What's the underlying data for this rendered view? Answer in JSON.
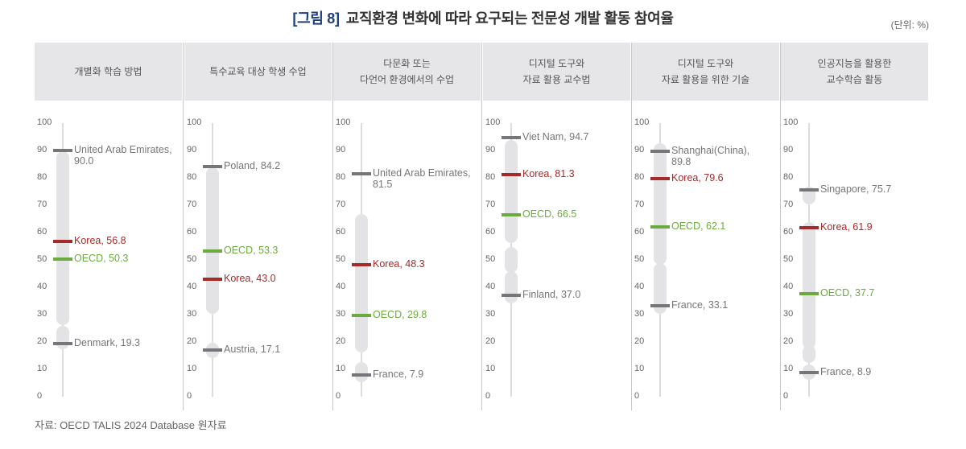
{
  "title": {
    "figure": "[그림 8]",
    "text": "교직환경 변화에 따라 요구되는 전문성 개발 활동 참여율"
  },
  "unit": "(단위: %)",
  "source": "자료: OECD TALIS 2024 Database 원자료",
  "colors": {
    "max_min": "#76767a",
    "korea": "#a52a2a",
    "oecd": "#6aaa3f",
    "dots": "#e3e3e5",
    "header_bg": "#e6e6e8",
    "title_fig": "#1f3f7a"
  },
  "axis_ticks": [
    "100",
    "90",
    "80",
    "70",
    "60",
    "50",
    "40",
    "30",
    "20",
    "10",
    "0"
  ],
  "chart_data": {
    "type": "dot-range",
    "title": "[그림 8] 교직환경 변화에 따라 요구되는 전문성 개발 활동 참여율",
    "unit": "%",
    "ylim": [
      0,
      100
    ],
    "yticks": [
      0,
      10,
      20,
      30,
      40,
      50,
      60,
      70,
      80,
      90,
      100
    ],
    "categories": [
      "개별화 학습 방법",
      "특수교육 대상 학생 수업",
      "다문화 또는 다언어 환경에서의 수업",
      "디지털 도구와 자료 활용 교수법",
      "디지털 도구와 자료 활용을 위한 기술",
      "인공지능을 활용한 교수학습 활동"
    ],
    "series": [
      {
        "name": "Max",
        "labels": [
          "United Arab Emirates",
          "Poland",
          "United Arab Emirates",
          "Viet Nam",
          "Shanghai(China)",
          "Singapore"
        ],
        "values": [
          90.0,
          84.2,
          81.5,
          94.7,
          89.8,
          75.7
        ]
      },
      {
        "name": "Korea",
        "values": [
          56.8,
          43.0,
          48.3,
          81.3,
          79.6,
          61.9
        ]
      },
      {
        "name": "OECD",
        "values": [
          50.3,
          53.3,
          29.8,
          66.5,
          62.1,
          37.7
        ]
      },
      {
        "name": "Min",
        "labels": [
          "Denmark",
          "Austria",
          "France",
          "Finland",
          "France",
          "France"
        ],
        "values": [
          19.3,
          17.1,
          7.9,
          37.0,
          33.1,
          8.9
        ]
      }
    ]
  },
  "panels": [
    {
      "header": "개별화 학습 방법",
      "markers": [
        {
          "kind": "max",
          "value": 90.0,
          "label": "United Arab Emirates,\n90.0"
        },
        {
          "kind": "korea",
          "value": 56.8,
          "label": "Korea, 56.8"
        },
        {
          "kind": "oecd",
          "value": 50.3,
          "label": "OECD, 50.3"
        },
        {
          "kind": "min",
          "value": 19.3,
          "label": "Denmark, 19.3"
        }
      ],
      "dots": [
        [
          28,
          88
        ],
        [
          19,
          24
        ]
      ]
    },
    {
      "header": "특수교육 대상 학생 수업",
      "markers": [
        {
          "kind": "max",
          "value": 84.2,
          "label": "Poland, 84.2"
        },
        {
          "kind": "oecd",
          "value": 53.3,
          "label": "OECD, 53.3"
        },
        {
          "kind": "korea",
          "value": 43.0,
          "label": "Korea, 43.0"
        },
        {
          "kind": "min",
          "value": 17.1,
          "label": "Austria, 17.1"
        }
      ],
      "dots": [
        [
          32,
          82
        ],
        [
          16,
          18
        ]
      ]
    },
    {
      "header": "다문화 또는\n다언어 환경에서의 수업",
      "markers": [
        {
          "kind": "max",
          "value": 81.5,
          "label": "United Arab Emirates,\n81.5"
        },
        {
          "kind": "korea",
          "value": 48.3,
          "label": "Korea, 48.3"
        },
        {
          "kind": "oecd",
          "value": 29.8,
          "label": "OECD, 29.8"
        },
        {
          "kind": "min",
          "value": 7.9,
          "label": "France, 7.9"
        }
      ],
      "dots": [
        [
          18,
          65
        ],
        [
          7,
          11
        ]
      ]
    },
    {
      "header": "디지털 도구와\n자료 활용 교수법",
      "markers": [
        {
          "kind": "max",
          "value": 94.7,
          "label": "Viet Nam, 94.7"
        },
        {
          "kind": "korea",
          "value": 81.3,
          "label": "Korea, 81.3"
        },
        {
          "kind": "oecd",
          "value": 66.5,
          "label": "OECD, 66.5"
        },
        {
          "kind": "min",
          "value": 37.0,
          "label": "Finland, 37.0"
        }
      ],
      "dots": [
        [
          58,
          92
        ],
        [
          47,
          53
        ],
        [
          36,
          44
        ]
      ]
    },
    {
      "header": "디지털 도구와\n자료 활용을 위한 기술",
      "markers": [
        {
          "kind": "max",
          "value": 89.8,
          "label": "Shanghai(China),\n89.8"
        },
        {
          "kind": "korea",
          "value": 79.6,
          "label": "Korea, 79.6"
        },
        {
          "kind": "oecd",
          "value": 62.1,
          "label": "OECD, 62.1"
        },
        {
          "kind": "min",
          "value": 33.1,
          "label": "France, 33.1"
        }
      ],
      "dots": [
        [
          50,
          91
        ],
        [
          32,
          47
        ]
      ]
    },
    {
      "header": "인공지능을 활용한\n교수학습 활동",
      "markers": [
        {
          "kind": "max",
          "value": 75.7,
          "label": "Singapore, 75.7"
        },
        {
          "kind": "korea",
          "value": 61.9,
          "label": "Korea, 61.9"
        },
        {
          "kind": "oecd",
          "value": 37.7,
          "label": "OECD, 37.7"
        },
        {
          "kind": "min",
          "value": 8.9,
          "label": "France, 8.9"
        }
      ],
      "dots": [
        [
          22,
          62
        ],
        [
          19,
          22
        ],
        [
          14,
          17
        ],
        [
          72,
          75
        ],
        [
          8,
          10
        ]
      ]
    }
  ]
}
